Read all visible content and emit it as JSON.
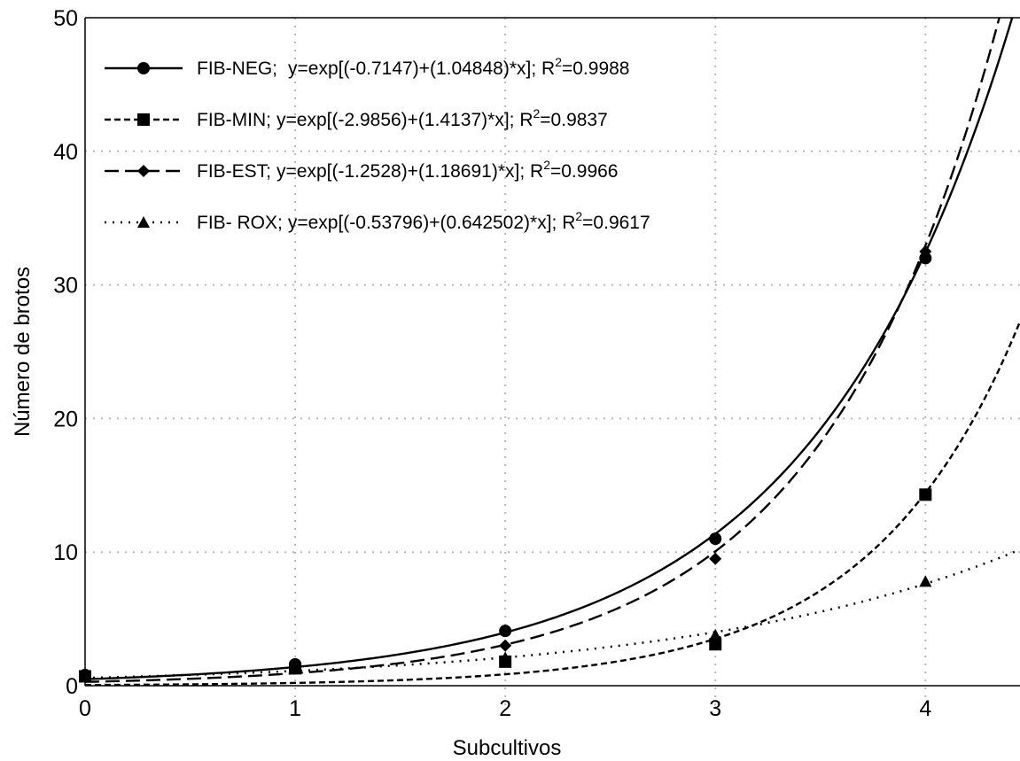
{
  "chart_data": {
    "type": "scatter",
    "xlabel": "Subcultivos",
    "ylabel": "Número de brotos",
    "xlim": [
      0,
      4.45
    ],
    "ylim": [
      0,
      50
    ],
    "x_ticks": [
      "0",
      "1",
      "2",
      "3",
      "4"
    ],
    "y_ticks": [
      "0",
      "10",
      "20",
      "30",
      "40",
      "50"
    ],
    "grid": true,
    "legend_position": "top-left",
    "series": [
      {
        "name": "FIB-NEG;",
        "equation": "y=exp[(-0.7147)+(1.04848)*x]; R",
        "r2_value": "=0.9988",
        "marker": "circle",
        "line_style": "solid",
        "color": "#000000",
        "fit": {
          "a": -0.7147,
          "b": 1.04848
        },
        "points": [
          {
            "x": 0,
            "y": 0.8
          },
          {
            "x": 1,
            "y": 1.6
          },
          {
            "x": 2,
            "y": 4.1
          },
          {
            "x": 3,
            "y": 11.0
          },
          {
            "x": 4,
            "y": 32.0
          }
        ]
      },
      {
        "name": "FIB-MIN;",
        "equation": "y=exp[(-2.9856)+(1.4137)*x]; R",
        "r2_value": "=0.9837",
        "marker": "square",
        "line_style": "short-dash",
        "color": "#000000",
        "fit": {
          "a": -2.9856,
          "b": 1.4137
        },
        "points": [
          {
            "x": 0,
            "y": 0.7
          },
          {
            "x": 1,
            "y": 1.3
          },
          {
            "x": 2,
            "y": 1.8
          },
          {
            "x": 3,
            "y": 3.1
          },
          {
            "x": 4,
            "y": 14.3
          }
        ]
      },
      {
        "name": "FIB-EST;",
        "equation": "y=exp[(-1.2528)+(1.18691)*x]; R",
        "r2_value": "=0.9966",
        "marker": "diamond",
        "line_style": "long-dash",
        "color": "#000000",
        "fit": {
          "a": -1.2528,
          "b": 1.18691
        },
        "points": [
          {
            "x": 0,
            "y": 0.8
          },
          {
            "x": 1,
            "y": 1.4
          },
          {
            "x": 2,
            "y": 3.0
          },
          {
            "x": 3,
            "y": 9.5
          },
          {
            "x": 4,
            "y": 32.5
          }
        ]
      },
      {
        "name": "FIB- ROX;",
        "equation": "y=exp[(-0.53796)+(0.642502)*x]; R",
        "r2_value": "=0.9617",
        "marker": "triangle",
        "line_style": "dotted",
        "color": "#000000",
        "fit": {
          "a": -0.53796,
          "b": 0.642502
        },
        "points": [
          {
            "x": 0,
            "y": 0.7
          },
          {
            "x": 1,
            "y": 1.3
          },
          {
            "x": 2,
            "y": 2.1
          },
          {
            "x": 3,
            "y": 3.8
          },
          {
            "x": 4,
            "y": 7.8
          }
        ]
      }
    ]
  }
}
